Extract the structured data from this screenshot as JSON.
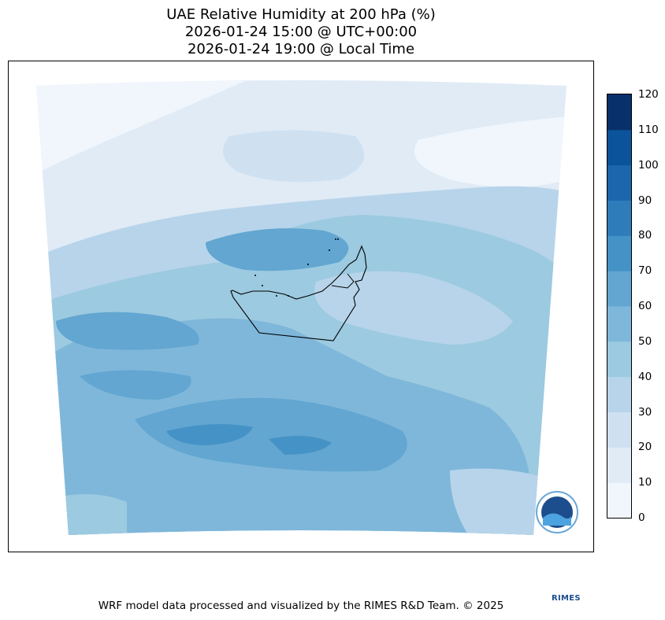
{
  "title": {
    "line1": "UAE Relative Humidity at 200 hPa (%)",
    "line2": "2026-01-24 15:00 @ UTC+00:00",
    "line3": "2026-01-24 19:00 @ Local Time"
  },
  "colorbar": {
    "ticks": [
      "0",
      "10",
      "20",
      "30",
      "40",
      "50",
      "60",
      "70",
      "80",
      "90",
      "100",
      "110",
      "120"
    ],
    "colors": [
      "#f0f6fc",
      "#e0ebf6",
      "#cfe1f1",
      "#b7d4ea",
      "#9ccae0",
      "#7fb7da",
      "#62a6d1",
      "#4592c6",
      "#2f7cbb",
      "#1c66ad",
      "#0b549c",
      "#08306b"
    ]
  },
  "logo": {
    "text": "RIMES"
  },
  "footer": "WRF model data processed and visualized by the RIMES R&D Team. © 2025"
}
